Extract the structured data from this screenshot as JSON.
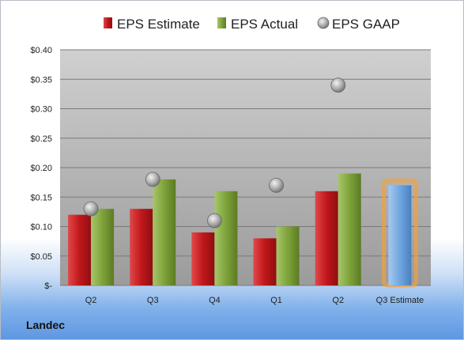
{
  "company": "Landec",
  "chart_data": {
    "type": "bar",
    "categories": [
      "Q2",
      "Q3",
      "Q4",
      "Q1",
      "Q2",
      "Q3 Estimate"
    ],
    "series": [
      {
        "name": "EPS Estimate",
        "values": [
          0.12,
          0.13,
          0.09,
          0.08,
          0.16,
          null
        ],
        "color": "#c0171b"
      },
      {
        "name": "EPS Actual",
        "values": [
          0.13,
          0.18,
          0.16,
          0.1,
          0.19,
          null
        ],
        "color": "#7ea33a"
      },
      {
        "name": "EPS GAAP",
        "type": "scatter",
        "values": [
          0.13,
          0.18,
          0.11,
          0.17,
          0.34,
          null
        ],
        "color": "#a9a9a9"
      },
      {
        "name": "Q3 Estimate",
        "values": [
          null,
          null,
          null,
          null,
          null,
          0.17
        ],
        "color": "#6fa6df",
        "highlight": "#f2a13d"
      }
    ],
    "legend": [
      "EPS Estimate",
      "EPS Actual",
      "EPS GAAP"
    ],
    "legend_position": "top",
    "ylim": [
      0,
      0.4
    ],
    "yticks": [
      "$0.40",
      "$0.35",
      "$0.30",
      "$0.25",
      "$0.20",
      "$0.15",
      "$0.10",
      "$0.05",
      "$-"
    ],
    "ytick_values": [
      0.4,
      0.35,
      0.3,
      0.25,
      0.2,
      0.15,
      0.1,
      0.05,
      0
    ],
    "grid": true
  }
}
